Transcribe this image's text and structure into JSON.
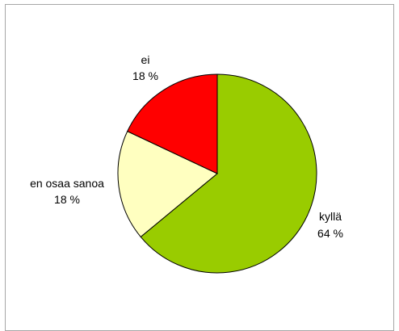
{
  "chart_data": {
    "type": "pie",
    "title": "",
    "slices": [
      {
        "label": "kyllä",
        "value_label": "64 %",
        "value": 64,
        "color": "#99cc00"
      },
      {
        "label": "en osaa sanoa",
        "value_label": "18 %",
        "value": 18,
        "color": "#ffffc0"
      },
      {
        "label": "ei",
        "value_label": "18 %",
        "value": 18,
        "color": "#ff0000"
      }
    ],
    "start_angle_deg": 0,
    "direction": "clockwise",
    "legend": "none",
    "slice_border_color": "#000000"
  }
}
